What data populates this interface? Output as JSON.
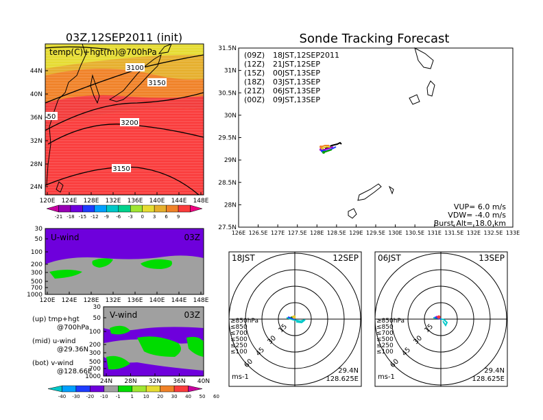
{
  "colors": {
    "temp_bands": [
      "#c800a0",
      "#9600b4",
      "#6e00dc",
      "#1e3cff",
      "#00a0ff",
      "#00c8c8",
      "#00d28c",
      "#a0e632",
      "#e6dc32",
      "#e6af2d",
      "#f08228",
      "#fa3c3c",
      "#f00082"
    ],
    "wind_bands": [
      "#00c8c8",
      "#00a0ff",
      "#1e3cff",
      "#6e00dc",
      "#a0a0a0",
      "#00dc00",
      "#a0e632",
      "#e6dc32",
      "#f08228",
      "#fa3c3c",
      "#c800a0"
    ],
    "track_colors": [
      "#000000",
      "#a000c8",
      "#1e3cff",
      "#00a000",
      "#e6c832",
      "#f08228"
    ]
  },
  "temp_panel": {
    "title": "03Z,12SEP2011  (init)",
    "label": "temp(C)+hgt(m)@700hPa",
    "lat_ticks": [
      "24N",
      "28N",
      "32N",
      "36N",
      "40N",
      "44N"
    ],
    "lon_ticks": [
      "120E",
      "124E",
      "128E",
      "132E",
      "136E",
      "140E",
      "144E",
      "148E"
    ],
    "contour_labels": [
      "3100",
      "3150",
      "3200",
      "3150",
      "50"
    ],
    "colorbar_labels": [
      "-21",
      "-18",
      "-15",
      "-12",
      "-9",
      "-6",
      "-3",
      "0",
      "3",
      "6",
      "9"
    ]
  },
  "uwind_panel": {
    "label": "U-wind",
    "time": "03Z",
    "p_ticks": [
      "30",
      "50",
      "100",
      "200",
      "300",
      "500",
      "700",
      "1000"
    ],
    "lon_ticks": [
      "120E",
      "124E",
      "128E",
      "132E",
      "136E",
      "140E",
      "144E",
      "148E"
    ]
  },
  "vwind_panel": {
    "label": "V-wind",
    "time": "03Z",
    "p_ticks": [
      "30",
      "50",
      "100",
      "200",
      "300",
      "500",
      "700",
      "1000"
    ],
    "lat_ticks": [
      "24N",
      "28N",
      "32N",
      "36N",
      "40N"
    ]
  },
  "legend_text": {
    "up_1": "(up) tmp+hgt",
    "up_2": "@700hPa",
    "mid_1": "(mid) u-wind",
    "mid_2": "@29.36N",
    "bot_1": "(bot) v-wind",
    "bot_2": "@128.66E"
  },
  "wind_colorbar_labels": [
    "-40",
    "-30",
    "-20",
    "-10",
    "-1",
    "1",
    "10",
    "20",
    "30",
    "40",
    "50",
    "60"
  ],
  "track_panel": {
    "title": "Sonde Tracking Forecast",
    "lat_ticks": [
      "27.5N",
      "28N",
      "28.5N",
      "29N",
      "29.5N",
      "30N",
      "30.5N",
      "31N",
      "31.5N"
    ],
    "lon_ticks": [
      "126E",
      "126.5E",
      "127E",
      "127.5E",
      "128E",
      "128.5E",
      "129E",
      "129.5E",
      "130E",
      "130.5E",
      "131E",
      "131.5E",
      "132E",
      "132.5E",
      "133E"
    ],
    "legend": [
      {
        "z": "(09Z)",
        "t": "18JST,12SEP2011"
      },
      {
        "z": "(12Z)",
        "t": "21JST,12SEP"
      },
      {
        "z": "(15Z)",
        "t": "00JST,13SEP"
      },
      {
        "z": "(18Z)",
        "t": "03JST,13SEP"
      },
      {
        "z": "(21Z)",
        "t": "06JST,13SEP"
      },
      {
        "z": "(00Z)",
        "t": "09JST,13SEP"
      }
    ],
    "vup": "VUP= 6.0 m/s",
    "vdw": "VDW= -4.0 m/s",
    "burst": "Burst Alt= 18.0 km"
  },
  "polar_left": {
    "time": "18JST",
    "date": "12SEP",
    "ring_labels": [
      "15",
      "30",
      "45",
      "60"
    ],
    "levels": [
      "≥850hPa",
      "≤850",
      "≤700",
      "≤500",
      "≤250",
      "≤100"
    ],
    "units": "ms-1",
    "lat": "29.4N",
    "lon": "128.625E"
  },
  "polar_right": {
    "time": "06JST",
    "date": "13SEP",
    "ring_labels": [
      "15",
      "30",
      "45",
      "60"
    ],
    "levels": [
      "≥850hPa",
      "≤850",
      "≤700",
      "≤500",
      "≤250",
      "≤100"
    ],
    "units": "ms-1",
    "lat": "29.4N",
    "lon": "128.625E"
  }
}
